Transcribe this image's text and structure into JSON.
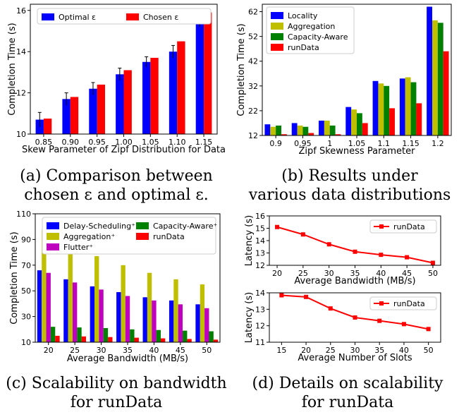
{
  "chart_data": [
    {
      "id": "a",
      "type": "bar",
      "categories": [
        "0.85",
        "0.90",
        "0.95",
        "1.00",
        "1.05",
        "1.10",
        "1.15"
      ],
      "series": [
        {
          "name": "Optimal ε",
          "color": "#0000ff",
          "values": [
            10.7,
            11.7,
            12.2,
            12.9,
            13.5,
            14.0,
            15.5
          ],
          "err": [
            0.35,
            0.3,
            0.3,
            0.3,
            0.25,
            0.3,
            0.3
          ]
        },
        {
          "name": "Chosen ε",
          "color": "#ff0000",
          "values": [
            10.75,
            11.8,
            12.4,
            13.1,
            13.7,
            14.5,
            15.9
          ],
          "err": [
            0,
            0,
            0,
            0,
            0,
            0,
            0
          ]
        }
      ],
      "xlabel": "Skew Parameter of Zipf Distribution for Data",
      "ylabel": "Completion Time (s)",
      "ylim": [
        10,
        16.3
      ],
      "yticks": [
        10,
        12,
        14,
        16
      ],
      "legend": "top-left",
      "caption": [
        "(a) Comparison between",
        "chosen ε and optimal ε."
      ]
    },
    {
      "id": "b",
      "type": "bar",
      "categories": [
        "0.9",
        "0.95",
        "1",
        "1.05",
        "1.1",
        "1.15",
        "1.2"
      ],
      "series": [
        {
          "name": "Locality",
          "color": "#0000ff",
          "values": [
            16.5,
            17,
            18,
            23.5,
            34,
            35,
            64
          ]
        },
        {
          "name": "Aggregation",
          "color": "#bfbf00",
          "values": [
            15.5,
            16,
            18,
            22.5,
            33,
            35.5,
            58.5
          ]
        },
        {
          "name": "Capacity-Aware",
          "color": "#008000",
          "values": [
            16,
            15.5,
            16,
            21,
            32,
            33.5,
            57.5
          ]
        },
        {
          "name": "runData",
          "color": "#ff0000",
          "values": [
            12.5,
            13,
            12.5,
            17,
            23,
            25,
            46
          ]
        }
      ],
      "xlabel": "Zipf Skewness Parameter",
      "ylabel": "Completion Time (s)",
      "ylim": [
        12,
        65
      ],
      "yticks": [
        12,
        22,
        32,
        42,
        52,
        62
      ],
      "legend": "top-left",
      "caption": [
        "(b) Results under",
        "various data distributions"
      ]
    },
    {
      "id": "c",
      "type": "bar",
      "categories": [
        "20",
        "25",
        "30",
        "35",
        "40",
        "45",
        "50"
      ],
      "series": [
        {
          "name": "Delay-Scheduling⁺",
          "color": "#0000ff",
          "values": [
            66,
            59,
            53.5,
            49,
            45,
            42.5,
            39.5
          ]
        },
        {
          "name": "Aggregation⁺",
          "color": "#bfbf00",
          "values": [
            97.5,
            84,
            77,
            70,
            64,
            59,
            55
          ]
        },
        {
          "name": "Flutter⁺",
          "color": "#bf00bf",
          "values": [
            64,
            56.5,
            51,
            46,
            42.5,
            39.5,
            36.5
          ]
        },
        {
          "name": "Capacity-Aware⁺",
          "color": "#008000",
          "values": [
            22,
            21.5,
            21,
            20,
            19.5,
            19,
            18.5
          ]
        },
        {
          "name": "runData",
          "color": "#ff0000",
          "values": [
            15,
            14.5,
            14,
            13.5,
            13,
            12.5,
            12
          ]
        }
      ],
      "xlabel": "Average Bandwidth (MB/s)",
      "ylabel": "Completion Time (s)",
      "ylim": [
        10,
        110
      ],
      "yticks": [
        10,
        30,
        50,
        70,
        90,
        110
      ],
      "legend": "top",
      "caption": [
        "(c) Scalability on bandwidth",
        "for runData"
      ]
    },
    {
      "id": "d1",
      "type": "line",
      "x": [
        20,
        25,
        30,
        35,
        40,
        45,
        50
      ],
      "series": [
        {
          "name": "runData",
          "color": "#ff0000",
          "values": [
            15.1,
            14.5,
            13.7,
            13.1,
            12.85,
            12.65,
            12.2
          ]
        }
      ],
      "xlabel": "Average Bandwidth (MB/s)",
      "ylabel": "Latency (s)",
      "xlim": [
        18.5,
        51.5
      ],
      "ylim": [
        12,
        16
      ],
      "yticks": [
        12,
        13,
        14,
        15,
        16
      ],
      "legend": "top-right"
    },
    {
      "id": "d2",
      "type": "line",
      "x": [
        15,
        20,
        25,
        30,
        35,
        40,
        50
      ],
      "series": [
        {
          "name": "runData",
          "color": "#ff0000",
          "values": [
            13.85,
            13.75,
            13.05,
            12.5,
            12.3,
            12.1,
            11.8
          ]
        }
      ],
      "xlabel": "Average Number of Slots",
      "ylabel": "Latency (s)",
      "xticks": [
        15,
        20,
        25,
        30,
        35,
        40,
        50
      ],
      "ylim": [
        11,
        14
      ],
      "yticks": [
        11,
        12,
        13,
        14
      ],
      "legend": "top-right",
      "caption": [
        "(d) Details on scalability",
        "for runData"
      ]
    }
  ]
}
